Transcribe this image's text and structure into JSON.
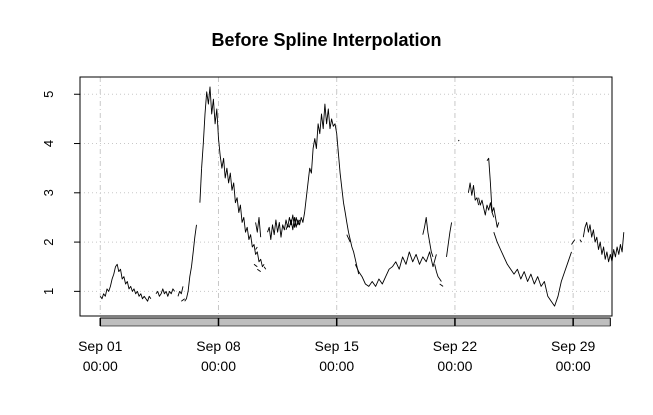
{
  "chart_data": {
    "type": "line",
    "title": "Before Spline Interpolation",
    "xlabel": "",
    "ylabel": "",
    "x_tick_labels": [
      {
        "date": "Sep 01",
        "time": "00:00"
      },
      {
        "date": "Sep 08",
        "time": "00:00"
      },
      {
        "date": "Sep 15",
        "time": "00:00"
      },
      {
        "date": "Sep 22",
        "time": "00:00"
      },
      {
        "date": "Sep 29",
        "time": "00:00"
      }
    ],
    "x_tick_days": [
      0,
      7,
      14,
      21,
      28
    ],
    "xlim_days": [
      -1.2,
      30.3
    ],
    "y_ticks": [
      1,
      2,
      3,
      4,
      5
    ],
    "ylim": [
      0.5,
      5.35
    ],
    "grid": true,
    "line_color": "#000000",
    "segments": [
      [
        [
          0.0,
          0.9
        ],
        [
          0.1,
          0.85
        ],
        [
          0.2,
          0.95
        ],
        [
          0.3,
          0.9
        ],
        [
          0.4,
          1.05
        ],
        [
          0.5,
          1.0
        ],
        [
          0.6,
          1.1
        ],
        [
          0.7,
          1.25
        ],
        [
          0.8,
          1.35
        ],
        [
          0.9,
          1.5
        ],
        [
          1.0,
          1.55
        ],
        [
          1.1,
          1.4
        ],
        [
          1.2,
          1.45
        ],
        [
          1.3,
          1.25
        ],
        [
          1.4,
          1.3
        ],
        [
          1.5,
          1.15
        ],
        [
          1.6,
          1.2
        ],
        [
          1.7,
          1.05
        ],
        [
          1.8,
          1.1
        ],
        [
          1.9,
          1.0
        ],
        [
          2.0,
          1.05
        ],
        [
          2.1,
          0.95
        ],
        [
          2.2,
          1.0
        ],
        [
          2.3,
          0.9
        ],
        [
          2.4,
          0.95
        ],
        [
          2.5,
          0.85
        ],
        [
          2.6,
          0.9
        ],
        [
          2.7,
          0.85
        ],
        [
          2.8,
          0.8
        ],
        [
          2.9,
          0.9
        ],
        [
          3.0,
          0.85
        ]
      ],
      [
        [
          3.3,
          0.95
        ],
        [
          3.4,
          1.0
        ],
        [
          3.5,
          0.9
        ],
        [
          3.6,
          0.95
        ],
        [
          3.7,
          1.05
        ],
        [
          3.8,
          0.95
        ],
        [
          3.9,
          1.0
        ],
        [
          4.0,
          0.9
        ],
        [
          4.1,
          1.0
        ],
        [
          4.2,
          0.95
        ],
        [
          4.3,
          1.05
        ],
        [
          4.4,
          1.0
        ]
      ],
      [
        [
          4.6,
          0.9
        ],
        [
          4.7,
          1.0
        ],
        [
          4.8,
          0.95
        ],
        [
          4.9,
          1.1
        ]
      ],
      [
        [
          4.8,
          0.8
        ],
        [
          5.0,
          0.85
        ]
      ],
      [
        [
          5.0,
          0.8
        ],
        [
          5.1,
          0.85
        ],
        [
          5.2,
          1.0
        ],
        [
          5.3,
          1.3
        ],
        [
          5.4,
          1.5
        ],
        [
          5.5,
          1.8
        ],
        [
          5.6,
          2.1
        ],
        [
          5.7,
          2.35
        ]
      ],
      [
        [
          5.9,
          2.8
        ],
        [
          6.0,
          3.5
        ]
      ],
      [
        [
          6.0,
          3.5
        ],
        [
          6.1,
          4.0
        ],
        [
          6.2,
          4.6
        ],
        [
          6.3,
          5.05
        ],
        [
          6.4,
          4.8
        ],
        [
          6.5,
          5.15
        ],
        [
          6.6,
          4.6
        ],
        [
          6.7,
          4.9
        ],
        [
          6.8,
          4.4
        ],
        [
          6.9,
          4.7
        ],
        [
          7.0,
          4.1
        ],
        [
          7.1,
          3.75
        ],
        [
          7.2,
          3.5
        ],
        [
          7.3,
          3.7
        ],
        [
          7.4,
          3.3
        ],
        [
          7.5,
          3.5
        ],
        [
          7.6,
          3.2
        ],
        [
          7.7,
          3.4
        ],
        [
          7.8,
          3.05
        ],
        [
          7.9,
          3.2
        ],
        [
          8.0,
          2.8
        ],
        [
          8.1,
          2.9
        ],
        [
          8.2,
          2.6
        ],
        [
          8.3,
          2.75
        ],
        [
          8.4,
          2.4
        ],
        [
          8.5,
          2.5
        ],
        [
          8.6,
          2.2
        ],
        [
          8.7,
          2.3
        ],
        [
          8.8,
          2.05
        ],
        [
          8.9,
          2.15
        ],
        [
          9.0,
          1.9
        ],
        [
          9.1,
          1.95
        ],
        [
          9.2,
          1.75
        ],
        [
          9.3,
          1.8
        ],
        [
          9.4,
          1.6
        ],
        [
          9.5,
          1.65
        ],
        [
          9.6,
          1.5
        ],
        [
          9.7,
          1.55
        ]
      ],
      [
        [
          9.2,
          2.4
        ],
        [
          9.3,
          2.2
        ],
        [
          9.4,
          2.5
        ],
        [
          9.5,
          2.1
        ]
      ],
      [
        [
          9.2,
          1.85
        ],
        [
          9.3,
          1.9
        ]
      ],
      [
        [
          9.1,
          1.55
        ],
        [
          9.3,
          1.5
        ]
      ],
      [
        [
          9.3,
          1.45
        ],
        [
          9.5,
          1.4
        ]
      ],
      [
        [
          9.7,
          1.5
        ],
        [
          9.8,
          1.45
        ]
      ],
      [
        [
          9.9,
          2.2
        ],
        [
          10.0,
          2.3
        ],
        [
          10.1,
          2.05
        ],
        [
          10.2,
          2.35
        ],
        [
          10.3,
          2.15
        ],
        [
          10.4,
          2.45
        ],
        [
          10.5,
          2.2
        ],
        [
          10.6,
          2.4
        ],
        [
          10.7,
          2.1
        ],
        [
          10.8,
          2.35
        ],
        [
          10.9,
          2.25
        ],
        [
          11.0,
          2.45
        ],
        [
          11.1,
          2.3
        ],
        [
          11.2,
          2.5
        ],
        [
          11.3,
          2.35
        ],
        [
          11.4,
          2.55
        ],
        [
          11.5,
          2.3
        ],
        [
          11.6,
          2.5
        ],
        [
          11.7,
          2.35
        ],
        [
          11.8,
          2.45
        ]
      ],
      [
        [
          11.0,
          2.25
        ],
        [
          11.1,
          2.35
        ],
        [
          11.2,
          2.3
        ],
        [
          11.3,
          2.45
        ],
        [
          11.4,
          2.25
        ],
        [
          11.5,
          2.5
        ],
        [
          11.6,
          2.3
        ],
        [
          11.7,
          2.45
        ],
        [
          11.8,
          2.35
        ],
        [
          11.9,
          2.5
        ],
        [
          12.0,
          2.4
        ],
        [
          12.1,
          2.6
        ],
        [
          12.2,
          2.9
        ],
        [
          12.3,
          3.2
        ],
        [
          12.4,
          3.5
        ],
        [
          12.5,
          3.4
        ],
        [
          12.6,
          3.9
        ],
        [
          12.7,
          4.1
        ],
        [
          12.8,
          3.9
        ],
        [
          12.9,
          4.4
        ],
        [
          13.0,
          4.2
        ],
        [
          13.1,
          4.6
        ],
        [
          13.2,
          4.3
        ],
        [
          13.3,
          4.8
        ],
        [
          13.4,
          4.4
        ],
        [
          13.5,
          4.7
        ],
        [
          13.6,
          4.3
        ],
        [
          13.7,
          4.5
        ],
        [
          13.8,
          4.35
        ],
        [
          13.9,
          4.4
        ],
        [
          14.0,
          4.2
        ]
      ],
      [
        [
          14.0,
          4.2
        ],
        [
          14.1,
          3.8
        ],
        [
          14.2,
          3.4
        ],
        [
          14.3,
          3.1
        ],
        [
          14.4,
          2.8
        ],
        [
          14.5,
          2.6
        ],
        [
          14.6,
          2.4
        ],
        [
          14.7,
          2.2
        ],
        [
          14.8,
          2.05
        ],
        [
          14.9,
          1.9
        ],
        [
          15.0,
          1.8
        ],
        [
          15.1,
          1.65
        ],
        [
          15.2,
          1.5
        ],
        [
          15.3,
          1.35
        ]
      ],
      [
        [
          14.6,
          2.15
        ],
        [
          14.8,
          2.0
        ]
      ],
      [
        [
          15.1,
          1.55
        ],
        [
          15.3,
          1.4
        ],
        [
          15.5,
          1.3
        ],
        [
          15.7,
          1.15
        ],
        [
          15.9,
          1.1
        ],
        [
          16.1,
          1.2
        ],
        [
          16.3,
          1.1
        ],
        [
          16.5,
          1.25
        ],
        [
          16.7,
          1.15
        ],
        [
          16.9,
          1.3
        ],
        [
          17.1,
          1.45
        ],
        [
          17.3,
          1.5
        ],
        [
          17.5,
          1.6
        ],
        [
          17.7,
          1.45
        ],
        [
          17.9,
          1.7
        ],
        [
          18.1,
          1.55
        ],
        [
          18.3,
          1.8
        ],
        [
          18.5,
          1.6
        ],
        [
          18.7,
          1.75
        ],
        [
          18.9,
          1.55
        ],
        [
          19.1,
          1.7
        ],
        [
          19.3,
          1.6
        ],
        [
          19.5,
          1.8
        ],
        [
          19.7,
          1.5
        ],
        [
          19.9,
          1.75
        ]
      ],
      [
        [
          19.1,
          2.15
        ],
        [
          19.2,
          2.3
        ],
        [
          19.3,
          2.5
        ],
        [
          19.4,
          2.2
        ],
        [
          19.5,
          2.0
        ],
        [
          19.6,
          1.8
        ],
        [
          19.7,
          1.7
        ]
      ],
      [
        [
          19.8,
          1.55
        ],
        [
          19.9,
          1.4
        ],
        [
          20.0,
          1.3
        ],
        [
          20.1,
          1.25
        ],
        [
          20.2,
          1.2
        ]
      ],
      [
        [
          20.1,
          1.15
        ],
        [
          20.3,
          1.1
        ]
      ],
      [
        [
          20.5,
          1.7
        ],
        [
          20.6,
          1.95
        ],
        [
          20.7,
          2.2
        ],
        [
          20.8,
          2.4
        ]
      ],
      [
        [
          21.2,
          4.05
        ],
        [
          21.25,
          4.07
        ]
      ],
      [
        [
          21.8,
          3.0
        ],
        [
          21.9,
          3.2
        ],
        [
          22.0,
          2.95
        ],
        [
          22.1,
          3.15
        ],
        [
          22.2,
          2.85
        ],
        [
          22.3,
          2.9
        ],
        [
          22.4,
          2.75
        ]
      ],
      [
        [
          22.4,
          2.9
        ],
        [
          22.5,
          2.75
        ],
        [
          22.6,
          2.85
        ],
        [
          22.7,
          2.7
        ],
        [
          22.8,
          2.55
        ],
        [
          22.9,
          2.75
        ],
        [
          23.0,
          2.65
        ],
        [
          23.1,
          2.8
        ],
        [
          23.2,
          2.6
        ],
        [
          23.3,
          2.7
        ],
        [
          23.4,
          2.5
        ],
        [
          23.5,
          2.3
        ],
        [
          23.6,
          2.4
        ]
      ],
      [
        [
          22.9,
          3.65
        ],
        [
          23.0,
          3.7
        ],
        [
          23.1,
          3.2
        ],
        [
          23.2,
          2.6
        ],
        [
          23.3,
          2.5
        ]
      ],
      [
        [
          23.3,
          2.2
        ],
        [
          23.5,
          2.0
        ],
        [
          23.7,
          1.85
        ],
        [
          23.9,
          1.7
        ],
        [
          24.1,
          1.55
        ],
        [
          24.3,
          1.45
        ],
        [
          24.5,
          1.35
        ],
        [
          24.7,
          1.45
        ],
        [
          24.9,
          1.25
        ],
        [
          25.1,
          1.4
        ],
        [
          25.3,
          1.2
        ],
        [
          25.5,
          1.35
        ],
        [
          25.7,
          1.15
        ],
        [
          25.9,
          1.3
        ],
        [
          26.1,
          1.1
        ],
        [
          26.3,
          1.2
        ],
        [
          26.5,
          0.9
        ],
        [
          26.7,
          0.8
        ],
        [
          26.9,
          0.7
        ],
        [
          27.1,
          0.9
        ],
        [
          27.3,
          1.2
        ],
        [
          27.5,
          1.4
        ],
        [
          27.7,
          1.6
        ],
        [
          27.9,
          1.8
        ]
      ],
      [
        [
          27.9,
          1.95
        ],
        [
          28.1,
          2.05
        ]
      ],
      [
        [
          28.4,
          2.05
        ],
        [
          28.5,
          2.0
        ]
      ],
      [
        [
          28.6,
          2.1
        ],
        [
          28.7,
          2.3
        ],
        [
          28.8,
          2.4
        ],
        [
          28.9,
          2.2
        ],
        [
          29.0,
          2.35
        ],
        [
          29.1,
          2.1
        ],
        [
          29.2,
          2.25
        ],
        [
          29.3,
          2.0
        ],
        [
          29.4,
          2.1
        ],
        [
          29.5,
          1.85
        ],
        [
          29.6,
          2.0
        ],
        [
          29.7,
          1.75
        ],
        [
          29.8,
          1.9
        ],
        [
          29.9,
          1.65
        ],
        [
          30.0,
          1.8
        ],
        [
          30.1,
          1.6
        ],
        [
          30.2,
          1.75
        ],
        [
          30.3,
          1.6
        ],
        [
          30.4,
          1.85
        ],
        [
          30.5,
          1.7
        ],
        [
          30.6,
          1.9
        ],
        [
          30.7,
          1.75
        ],
        [
          30.8,
          1.95
        ],
        [
          30.9,
          1.8
        ],
        [
          31.0,
          2.2
        ]
      ]
    ]
  }
}
